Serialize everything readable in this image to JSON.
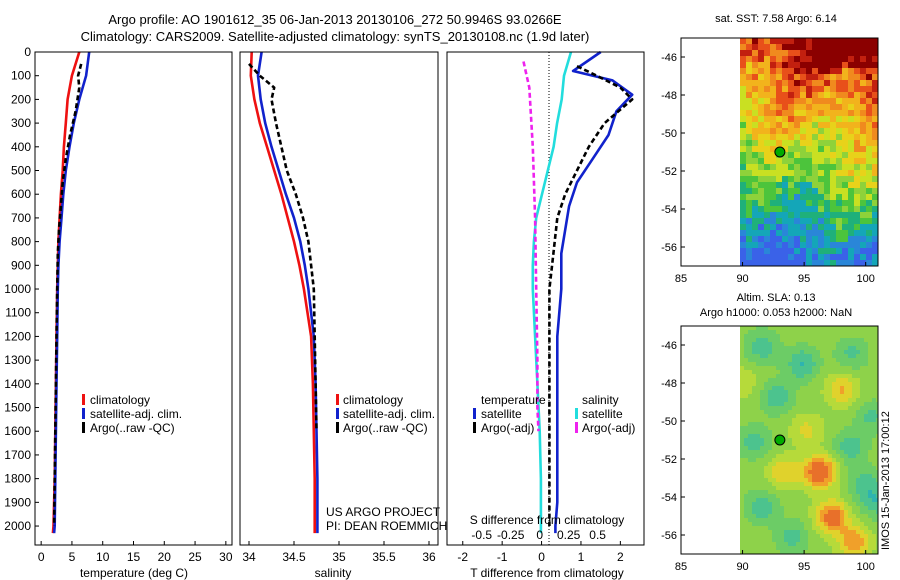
{
  "header": {
    "line1": "Argo profile: AO 1901612_35 06-Jan-2013 20130106_272 50.9946S 93.0266E",
    "line2": "Climatology: CARS2009. Satellite-adjusted climatology: synTS_20130108.nc (1.9d later)"
  },
  "credits": {
    "project": "US ARGO PROJECT",
    "pi": "PI: DEAN ROEMMICH",
    "side": "IMOS 15-Jan-2013 17:00:12"
  },
  "colors": {
    "climatology": "#ee1111",
    "satellite": "#1122cc",
    "argo": "#000000",
    "sal_satellite": "#22dddd",
    "sal_argo": "#ee22ee"
  },
  "chart_data": [
    {
      "id": "temperature",
      "type": "line",
      "xlabel": "temperature (deg C)",
      "ylabel": "",
      "xlim": [
        -1,
        31
      ],
      "ylim": [
        2080,
        0
      ],
      "xticks": [
        0,
        5,
        10,
        15,
        20,
        25,
        30
      ],
      "yticks": [
        0,
        100,
        200,
        300,
        400,
        500,
        600,
        700,
        800,
        900,
        1000,
        1100,
        1200,
        1300,
        1400,
        1500,
        1600,
        1700,
        1800,
        1900,
        2000
      ],
      "legend": [
        "climatology",
        "satellite-adj. clim.",
        "Argo(..raw -QC)"
      ],
      "legend_placement": "lower-center",
      "series": [
        {
          "name": "climatology",
          "style": "solid",
          "x": [
            6.2,
            5.0,
            4.3,
            4.0,
            3.7,
            3.5,
            3.2,
            3.0,
            2.8,
            2.7,
            2.6,
            2.5,
            2.4,
            2.3,
            2.2,
            2.1,
            2.0,
            1.9
          ],
          "y": [
            0,
            100,
            200,
            300,
            400,
            500,
            600,
            700,
            800,
            900,
            1000,
            1200,
            1400,
            1600,
            1800,
            1900,
            2000,
            2030
          ]
        },
        {
          "name": "satellite-adj. clim.",
          "style": "solid",
          "x": [
            7.8,
            7.3,
            6.2,
            5.3,
            4.6,
            4.0,
            3.6,
            3.3,
            3.0,
            2.8,
            2.7,
            2.6,
            2.5,
            2.4,
            2.3,
            2.2,
            2.1
          ],
          "y": [
            0,
            100,
            200,
            300,
            400,
            500,
            600,
            700,
            800,
            900,
            1000,
            1200,
            1400,
            1600,
            1800,
            2000,
            2030
          ]
        },
        {
          "name": "Argo(..raw -QC)",
          "style": "dashed",
          "x": [
            6.5,
            6.0,
            6.2,
            5.6,
            4.7,
            4.0,
            3.5,
            3.2,
            2.9,
            2.7,
            2.6,
            2.5,
            2.4,
            2.3,
            2.2,
            2.1
          ],
          "y": [
            50,
            100,
            150,
            250,
            350,
            450,
            550,
            650,
            750,
            850,
            1000,
            1200,
            1400,
            1600,
            1800,
            2000
          ]
        }
      ]
    },
    {
      "id": "salinity",
      "type": "line",
      "xlabel": "salinity",
      "ylabel": "",
      "xlim": [
        33.9,
        36.1
      ],
      "ylim": [
        2080,
        0
      ],
      "xticks": [
        34,
        34.5,
        35,
        35.5,
        36
      ],
      "legend": [
        "climatology",
        "satellite-adj. clim.",
        "Argo(..raw -QC)"
      ],
      "legend_placement": "lower-right",
      "series": [
        {
          "name": "climatology",
          "style": "solid",
          "x": [
            34.03,
            34.02,
            34.06,
            34.12,
            34.2,
            34.28,
            34.36,
            34.43,
            34.5,
            34.56,
            34.61,
            34.65,
            34.69,
            34.71,
            34.72,
            34.73,
            34.73
          ],
          "y": [
            0,
            100,
            200,
            300,
            400,
            500,
            600,
            700,
            800,
            900,
            1000,
            1100,
            1200,
            1400,
            1600,
            1800,
            2030
          ]
        },
        {
          "name": "satellite-adj. clim.",
          "style": "solid",
          "x": [
            34.14,
            34.1,
            34.13,
            34.18,
            34.25,
            34.33,
            34.41,
            34.5,
            34.57,
            34.62,
            34.66,
            34.69,
            34.72,
            34.74,
            34.75,
            34.76,
            34.76
          ],
          "y": [
            0,
            100,
            200,
            300,
            400,
            500,
            600,
            700,
            800,
            900,
            1000,
            1100,
            1200,
            1400,
            1600,
            1800,
            2030
          ]
        },
        {
          "name": "Argo(..raw -QC)",
          "style": "dashed",
          "x": [
            34.0,
            34.12,
            34.28,
            34.25,
            34.3,
            34.36,
            34.42,
            34.52,
            34.6,
            34.66,
            34.69,
            34.72,
            34.73,
            34.74,
            34.75
          ],
          "y": [
            50,
            100,
            150,
            200,
            300,
            400,
            500,
            600,
            700,
            800,
            900,
            1000,
            1200,
            1400,
            1600
          ]
        }
      ]
    },
    {
      "id": "differences",
      "type": "line",
      "xlabel": "T difference from climatology",
      "x2label": "S difference from climatology",
      "ylabel": "",
      "xlim": [
        -2.4,
        2.6
      ],
      "ylim": [
        2080,
        0
      ],
      "xticks": [
        -2,
        -1,
        0,
        1,
        2
      ],
      "x2ticks": [
        -0.5,
        -0.25,
        0,
        0.25,
        0.5
      ],
      "legend_titles": [
        "temperature",
        "salinity"
      ],
      "legend": [
        "satellite",
        "Argo(-adj)",
        "satellite",
        "Argo(-adj)"
      ],
      "legend_placement": "lower-center",
      "series": [
        {
          "name": "satellite",
          "group": "temperature",
          "style": "solid",
          "x": [
            1.5,
            0.8,
            1.8,
            2.3,
            1.9,
            1.7,
            1.3,
            0.9,
            0.7,
            0.6,
            0.5,
            0.5,
            0.4,
            0.4,
            0.4,
            0.4,
            0.4,
            0.35,
            0.35
          ],
          "y": [
            0,
            80,
            120,
            180,
            250,
            350,
            450,
            550,
            650,
            750,
            850,
            1000,
            1200,
            1400,
            1600,
            1800,
            1900,
            2000,
            2030
          ]
        },
        {
          "name": "Argo(-adj)",
          "group": "temperature",
          "style": "dashed",
          "x": [
            0.9,
            1.4,
            2.0,
            2.3,
            1.6,
            1.2,
            0.9,
            0.6,
            0.4,
            0.3,
            0.2,
            0.2,
            0.2,
            0.2
          ],
          "y": [
            60,
            100,
            150,
            200,
            300,
            400,
            500,
            600,
            700,
            850,
            1000,
            1400,
            1800,
            2000
          ]
        },
        {
          "name": "satellite",
          "group": "salinity",
          "style": "solid",
          "x": [
            0.27,
            0.21,
            0.19,
            0.15,
            0.12,
            0.07,
            0.02,
            -0.03,
            -0.05,
            -0.06,
            -0.06,
            -0.04,
            -0.02,
            0.0,
            0.01,
            0.01,
            0.01
          ],
          "y": [
            0,
            100,
            200,
            300,
            400,
            500,
            600,
            700,
            800,
            900,
            1000,
            1200,
            1400,
            1600,
            1800,
            2000,
            2030
          ]
        },
        {
          "name": "Argo(-adj)",
          "group": "salinity",
          "style": "dashed",
          "x": [
            -0.14,
            -0.09,
            -0.06,
            -0.04,
            -0.03,
            -0.02,
            -0.02,
            -0.01
          ],
          "y": [
            40,
            150,
            400,
            700,
            1000,
            1300,
            1500,
            1600
          ]
        }
      ]
    },
    {
      "id": "sst_map",
      "type": "heatmap",
      "title": "sat. SST: 7.58 Argo: 6.14",
      "xlim": [
        85,
        101
      ],
      "ylim": [
        -57,
        -45
      ],
      "xticks": [
        85,
        90,
        95,
        100
      ],
      "yticks": [
        -46,
        -48,
        -50,
        -52,
        -54,
        -56
      ],
      "argo_position": {
        "lon": 93.03,
        "lat": -51.0
      }
    },
    {
      "id": "sla_map",
      "type": "heatmap",
      "title": "Altim. SLA: 0.13",
      "subtitle": "Argo h1000: 0.053 h2000: NaN",
      "xlim": [
        85,
        101
      ],
      "ylim": [
        -57,
        -45
      ],
      "xticks": [
        85,
        90,
        95,
        100
      ],
      "yticks": [
        -46,
        -48,
        -50,
        -52,
        -54,
        -56
      ],
      "argo_position": {
        "lon": 93.03,
        "lat": -51.0
      }
    }
  ]
}
